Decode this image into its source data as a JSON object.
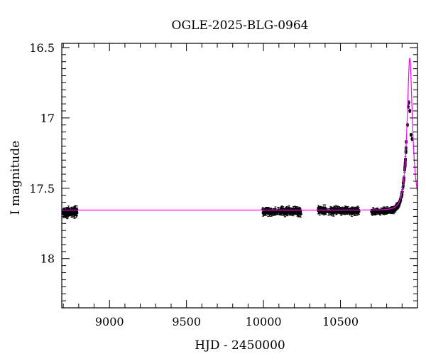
{
  "chart_data": {
    "type": "scatter",
    "title": "OGLE-2025-BLG-0964",
    "xlabel": "HJD - 2450000",
    "ylabel": "I magnitude",
    "xlim": [
      8690,
      11000
    ],
    "ylim": [
      18.35,
      16.47
    ],
    "y_inverted": true,
    "x_ticks": [
      9000,
      9500,
      10000,
      10500
    ],
    "x_tick_labels": [
      "9000",
      "9500",
      "10000",
      "10500"
    ],
    "y_ticks": [
      16.5,
      17,
      17.5,
      18
    ],
    "y_tick_labels": [
      "16.5",
      "17",
      "17.5",
      "18"
    ],
    "grid": false,
    "colors": {
      "data": "#000000",
      "model": "#ff00ff"
    },
    "model": {
      "name": "",
      "baseline": 17.655,
      "t0": 10950,
      "tE": 34,
      "u0": 0.39
    },
    "series": [
      {
        "name": "",
        "marker": "filled-circle-with-errorbars",
        "segments": [
          {
            "x_range": [
              8700,
              8790
            ],
            "y_mean": 17.67,
            "scatter": 0.03,
            "yerr": 0.022,
            "n": 70
          },
          {
            "x_range": [
              9995,
              10250
            ],
            "y_mean": 17.665,
            "scatter": 0.025,
            "yerr": 0.02,
            "n": 130
          },
          {
            "x_range": [
              10355,
              10620
            ],
            "y_mean": 17.66,
            "scatter": 0.022,
            "yerr": 0.02,
            "n": 130
          }
        ],
        "rise": {
          "x_range": [
            10700,
            10930
          ],
          "scatter": 0.02,
          "yerr": 0.015,
          "n": 150
        },
        "peak_points": [
          {
            "x": 10935,
            "y": 17.05
          },
          {
            "x": 10940,
            "y": 16.92
          },
          {
            "x": 10944,
            "y": 16.89
          },
          {
            "x": 10950,
            "y": 16.95
          },
          {
            "x": 10958,
            "y": 17.12
          },
          {
            "x": 10965,
            "y": 17.15
          }
        ]
      }
    ]
  }
}
